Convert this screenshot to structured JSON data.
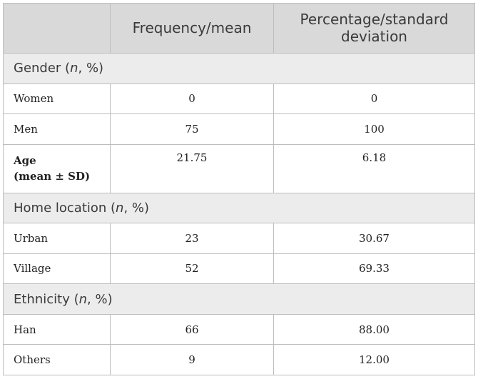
{
  "table": {
    "headers": [
      "",
      "Frequency/mean",
      "Percentage/standard deviation"
    ],
    "sections": [
      {
        "title_prefix": "Gender (",
        "title_italic": "n",
        "title_suffix": ", %)",
        "rows": [
          {
            "label": "Women",
            "value1": "0",
            "value2": "0"
          },
          {
            "label": "Men",
            "value1": "75",
            "value2": "100"
          }
        ]
      },
      {
        "title_prefix": "Home location (",
        "title_italic": "n",
        "title_suffix": ", %)",
        "rows": [
          {
            "label": "Urban",
            "value1": "23",
            "value2": "30.67"
          },
          {
            "label": "Village",
            "value1": "52",
            "value2": "69.33"
          }
        ]
      },
      {
        "title_prefix": "Ethnicity (",
        "title_italic": "n",
        "title_suffix": ", %)",
        "rows": [
          {
            "label": "Han",
            "value1": "66",
            "value2": "88.00"
          },
          {
            "label": "Others",
            "value1": "9",
            "value2": "12.00"
          }
        ]
      }
    ],
    "age_row": {
      "label_line1": "Age",
      "label_line2": "(mean ± SD)",
      "value1": "21.75",
      "value2": "6.18"
    }
  }
}
